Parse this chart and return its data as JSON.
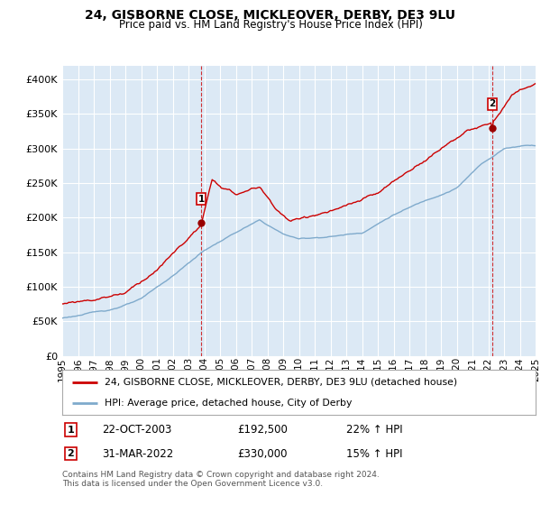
{
  "title": "24, GISBORNE CLOSE, MICKLEOVER, DERBY, DE3 9LU",
  "subtitle": "Price paid vs. HM Land Registry's House Price Index (HPI)",
  "bg_color": "#ffffff",
  "plot_bg_color": "#dce9f5",
  "grid_color": "#ffffff",
  "line1_color": "#cc0000",
  "line2_color": "#7faacc",
  "marker_color": "#990000",
  "sale1_x": 2003.8,
  "sale1_y": 192500,
  "sale2_x": 2022.25,
  "sale2_y": 330000,
  "legend_line1": "24, GISBORNE CLOSE, MICKLEOVER, DERBY, DE3 9LU (detached house)",
  "legend_line2": "HPI: Average price, detached house, City of Derby",
  "annotation1_date": "22-OCT-2003",
  "annotation1_price": "£192,500",
  "annotation1_hpi": "22% ↑ HPI",
  "annotation2_date": "31-MAR-2022",
  "annotation2_price": "£330,000",
  "annotation2_hpi": "15% ↑ HPI",
  "footer": "Contains HM Land Registry data © Crown copyright and database right 2024.\nThis data is licensed under the Open Government Licence v3.0.",
  "xmin": 1995,
  "xmax": 2025,
  "ylim": [
    0,
    420000
  ],
  "yticks": [
    0,
    50000,
    100000,
    150000,
    200000,
    250000,
    300000,
    350000,
    400000
  ]
}
